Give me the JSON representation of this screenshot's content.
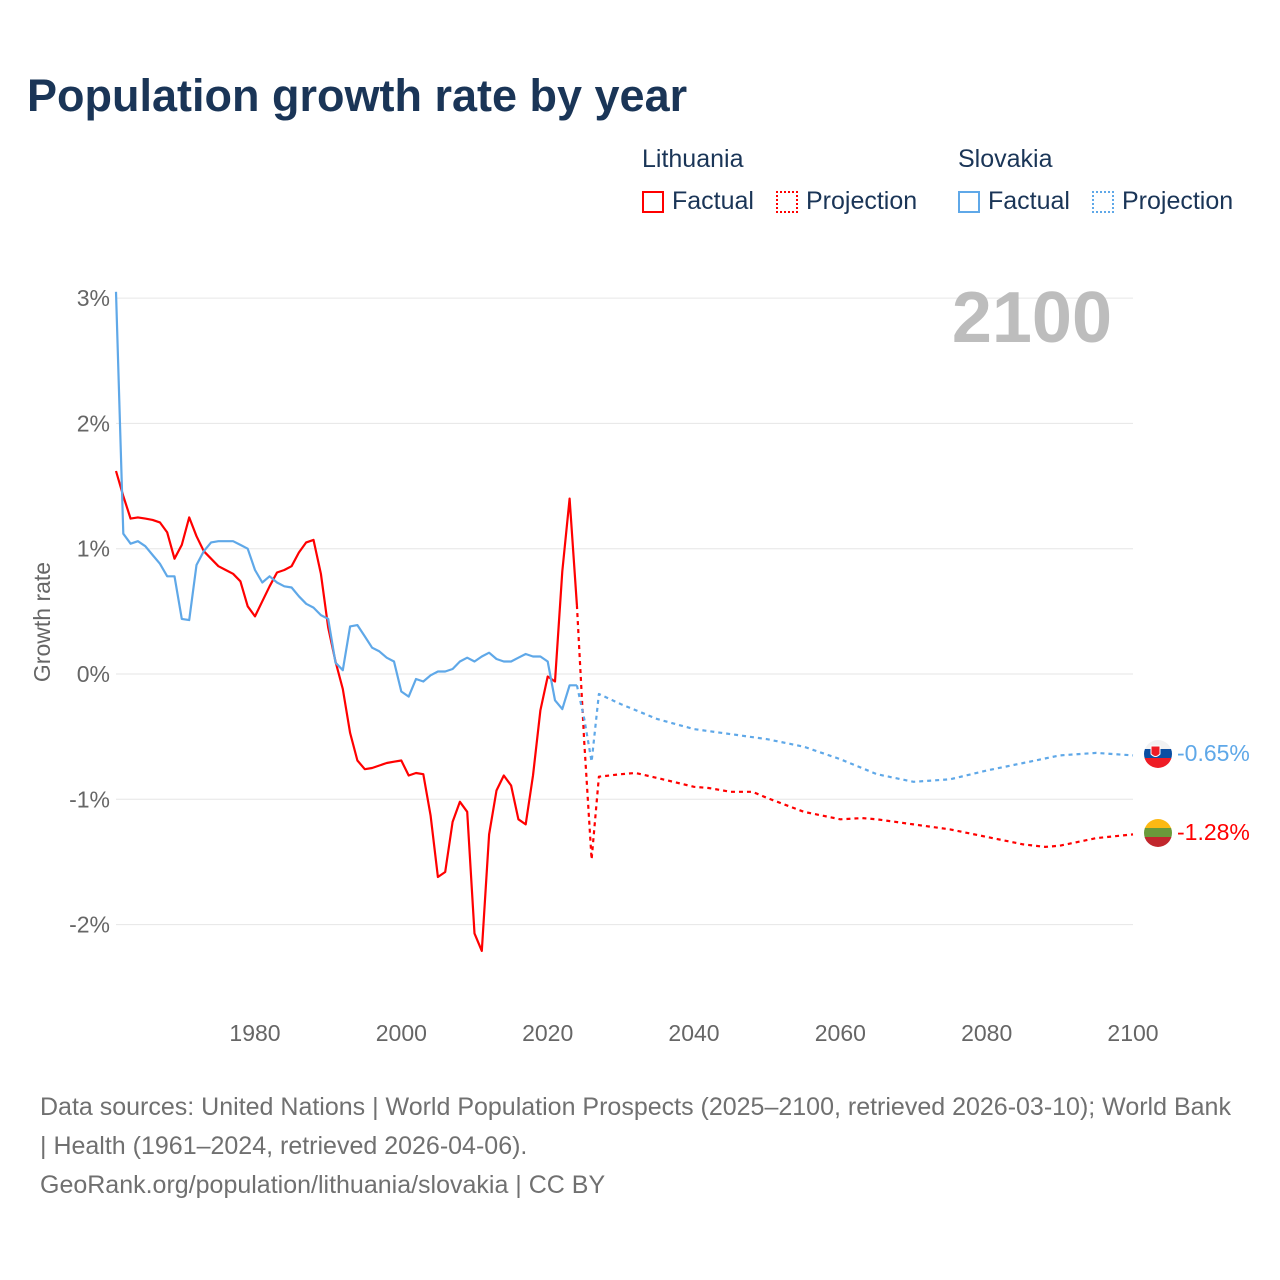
{
  "title": "Population growth rate by year",
  "legend": {
    "groups": [
      {
        "country": "Lithuania",
        "factual": "Factual",
        "projection": "Projection"
      },
      {
        "country": "Slovakia",
        "factual": "Factual",
        "projection": "Projection"
      }
    ]
  },
  "year_label": "2100",
  "end_labels": {
    "slovakia": "-0.65%",
    "lithuania": "-1.28%"
  },
  "footer": {
    "sources": "Data sources: United Nations | World Population Prospects (2025–2100, retrieved 2026-03-10); World Bank | Health (1961–2024, retrieved 2026-04-06).",
    "link": "GeoRank.org/population/lithuania/slovakia | CC BY"
  },
  "colors": {
    "lithuania": "#ff0000",
    "slovakia": "#5fa8e8",
    "text": "#1a3557"
  },
  "chart_data": {
    "type": "line",
    "title": "Population growth rate by year",
    "xlabel": "",
    "ylabel": "Growth rate",
    "xlim": [
      1961,
      2100
    ],
    "ylim": [
      -2.6,
      3.1
    ],
    "xticks": [
      1980,
      2000,
      2020,
      2040,
      2060,
      2080,
      2100
    ],
    "xtick_labels": [
      "1980",
      "2000",
      "2020",
      "2040",
      "2060",
      "2080",
      "2100"
    ],
    "yticks": [
      3,
      2,
      1,
      0,
      -1,
      -2
    ],
    "ytick_labels": [
      "3%",
      "2%",
      "1%",
      "0%",
      "-1%",
      "-2%"
    ],
    "grid": true,
    "series": [
      {
        "name": "Lithuania Factual",
        "country": "lithuania",
        "style": "solid",
        "x_start": 1961,
        "values": [
          1.62,
          1.42,
          1.24,
          1.25,
          1.24,
          1.23,
          1.21,
          1.13,
          0.92,
          1.03,
          1.25,
          1.1,
          0.98,
          0.92,
          0.86,
          0.83,
          0.8,
          0.74,
          0.54,
          0.46,
          0.58,
          0.7,
          0.81,
          0.83,
          0.86,
          0.97,
          1.05,
          1.07,
          0.8,
          0.37,
          0.1,
          -0.12,
          -0.47,
          -0.69,
          -0.76,
          -0.75,
          -0.73,
          -0.71,
          -0.7,
          -0.69,
          -0.81,
          -0.79,
          -0.8,
          -1.13,
          -1.62,
          -1.58,
          -1.18,
          -1.02,
          -1.1,
          -2.07,
          -2.21,
          -1.28,
          -0.93,
          -0.81,
          -0.89,
          -1.16,
          -1.2,
          -0.81,
          -0.29,
          -0.02,
          -0.06,
          0.82,
          1.4,
          0.55
        ]
      },
      {
        "name": "Lithuania Projection",
        "country": "lithuania",
        "style": "dotted",
        "x": [
          2024,
          2025,
          2026,
          2027,
          2030,
          2032,
          2035,
          2040,
          2042,
          2045,
          2048,
          2050,
          2055,
          2060,
          2063,
          2065,
          2070,
          2075,
          2080,
          2085,
          2088,
          2090,
          2095,
          2100
        ],
        "values": [
          0.55,
          -0.55,
          -1.48,
          -0.82,
          -0.8,
          -0.79,
          -0.83,
          -0.9,
          -0.91,
          -0.94,
          -0.94,
          -0.99,
          -1.1,
          -1.16,
          -1.15,
          -1.16,
          -1.2,
          -1.24,
          -1.3,
          -1.36,
          -1.38,
          -1.37,
          -1.31,
          -1.28
        ]
      },
      {
        "name": "Slovakia Factual",
        "country": "slovakia",
        "style": "solid",
        "x_start": 1961,
        "values": [
          3.05,
          1.12,
          1.04,
          1.06,
          1.02,
          0.95,
          0.88,
          0.78,
          0.78,
          0.44,
          0.43,
          0.87,
          0.98,
          1.05,
          1.06,
          1.06,
          1.06,
          1.03,
          1.0,
          0.83,
          0.73,
          0.78,
          0.73,
          0.7,
          0.69,
          0.62,
          0.56,
          0.53,
          0.47,
          0.44,
          0.09,
          0.03,
          0.38,
          0.39,
          0.3,
          0.21,
          0.18,
          0.13,
          0.1,
          -0.14,
          -0.18,
          -0.04,
          -0.06,
          -0.01,
          0.02,
          0.02,
          0.04,
          0.1,
          0.13,
          0.1,
          0.14,
          0.17,
          0.12,
          0.1,
          0.1,
          0.13,
          0.16,
          0.14,
          0.14,
          0.1,
          -0.21,
          -0.28,
          -0.09,
          -0.09
        ]
      },
      {
        "name": "Slovakia Projection",
        "country": "slovakia",
        "style": "dotted",
        "x": [
          2024,
          2025,
          2026,
          2027,
          2030,
          2035,
          2040,
          2045,
          2050,
          2055,
          2060,
          2065,
          2070,
          2075,
          2080,
          2085,
          2090,
          2095,
          2100
        ],
        "values": [
          -0.09,
          -0.36,
          -0.7,
          -0.16,
          -0.24,
          -0.36,
          -0.44,
          -0.48,
          -0.52,
          -0.58,
          -0.68,
          -0.8,
          -0.86,
          -0.84,
          -0.77,
          -0.71,
          -0.65,
          -0.63,
          -0.65
        ]
      }
    ]
  }
}
